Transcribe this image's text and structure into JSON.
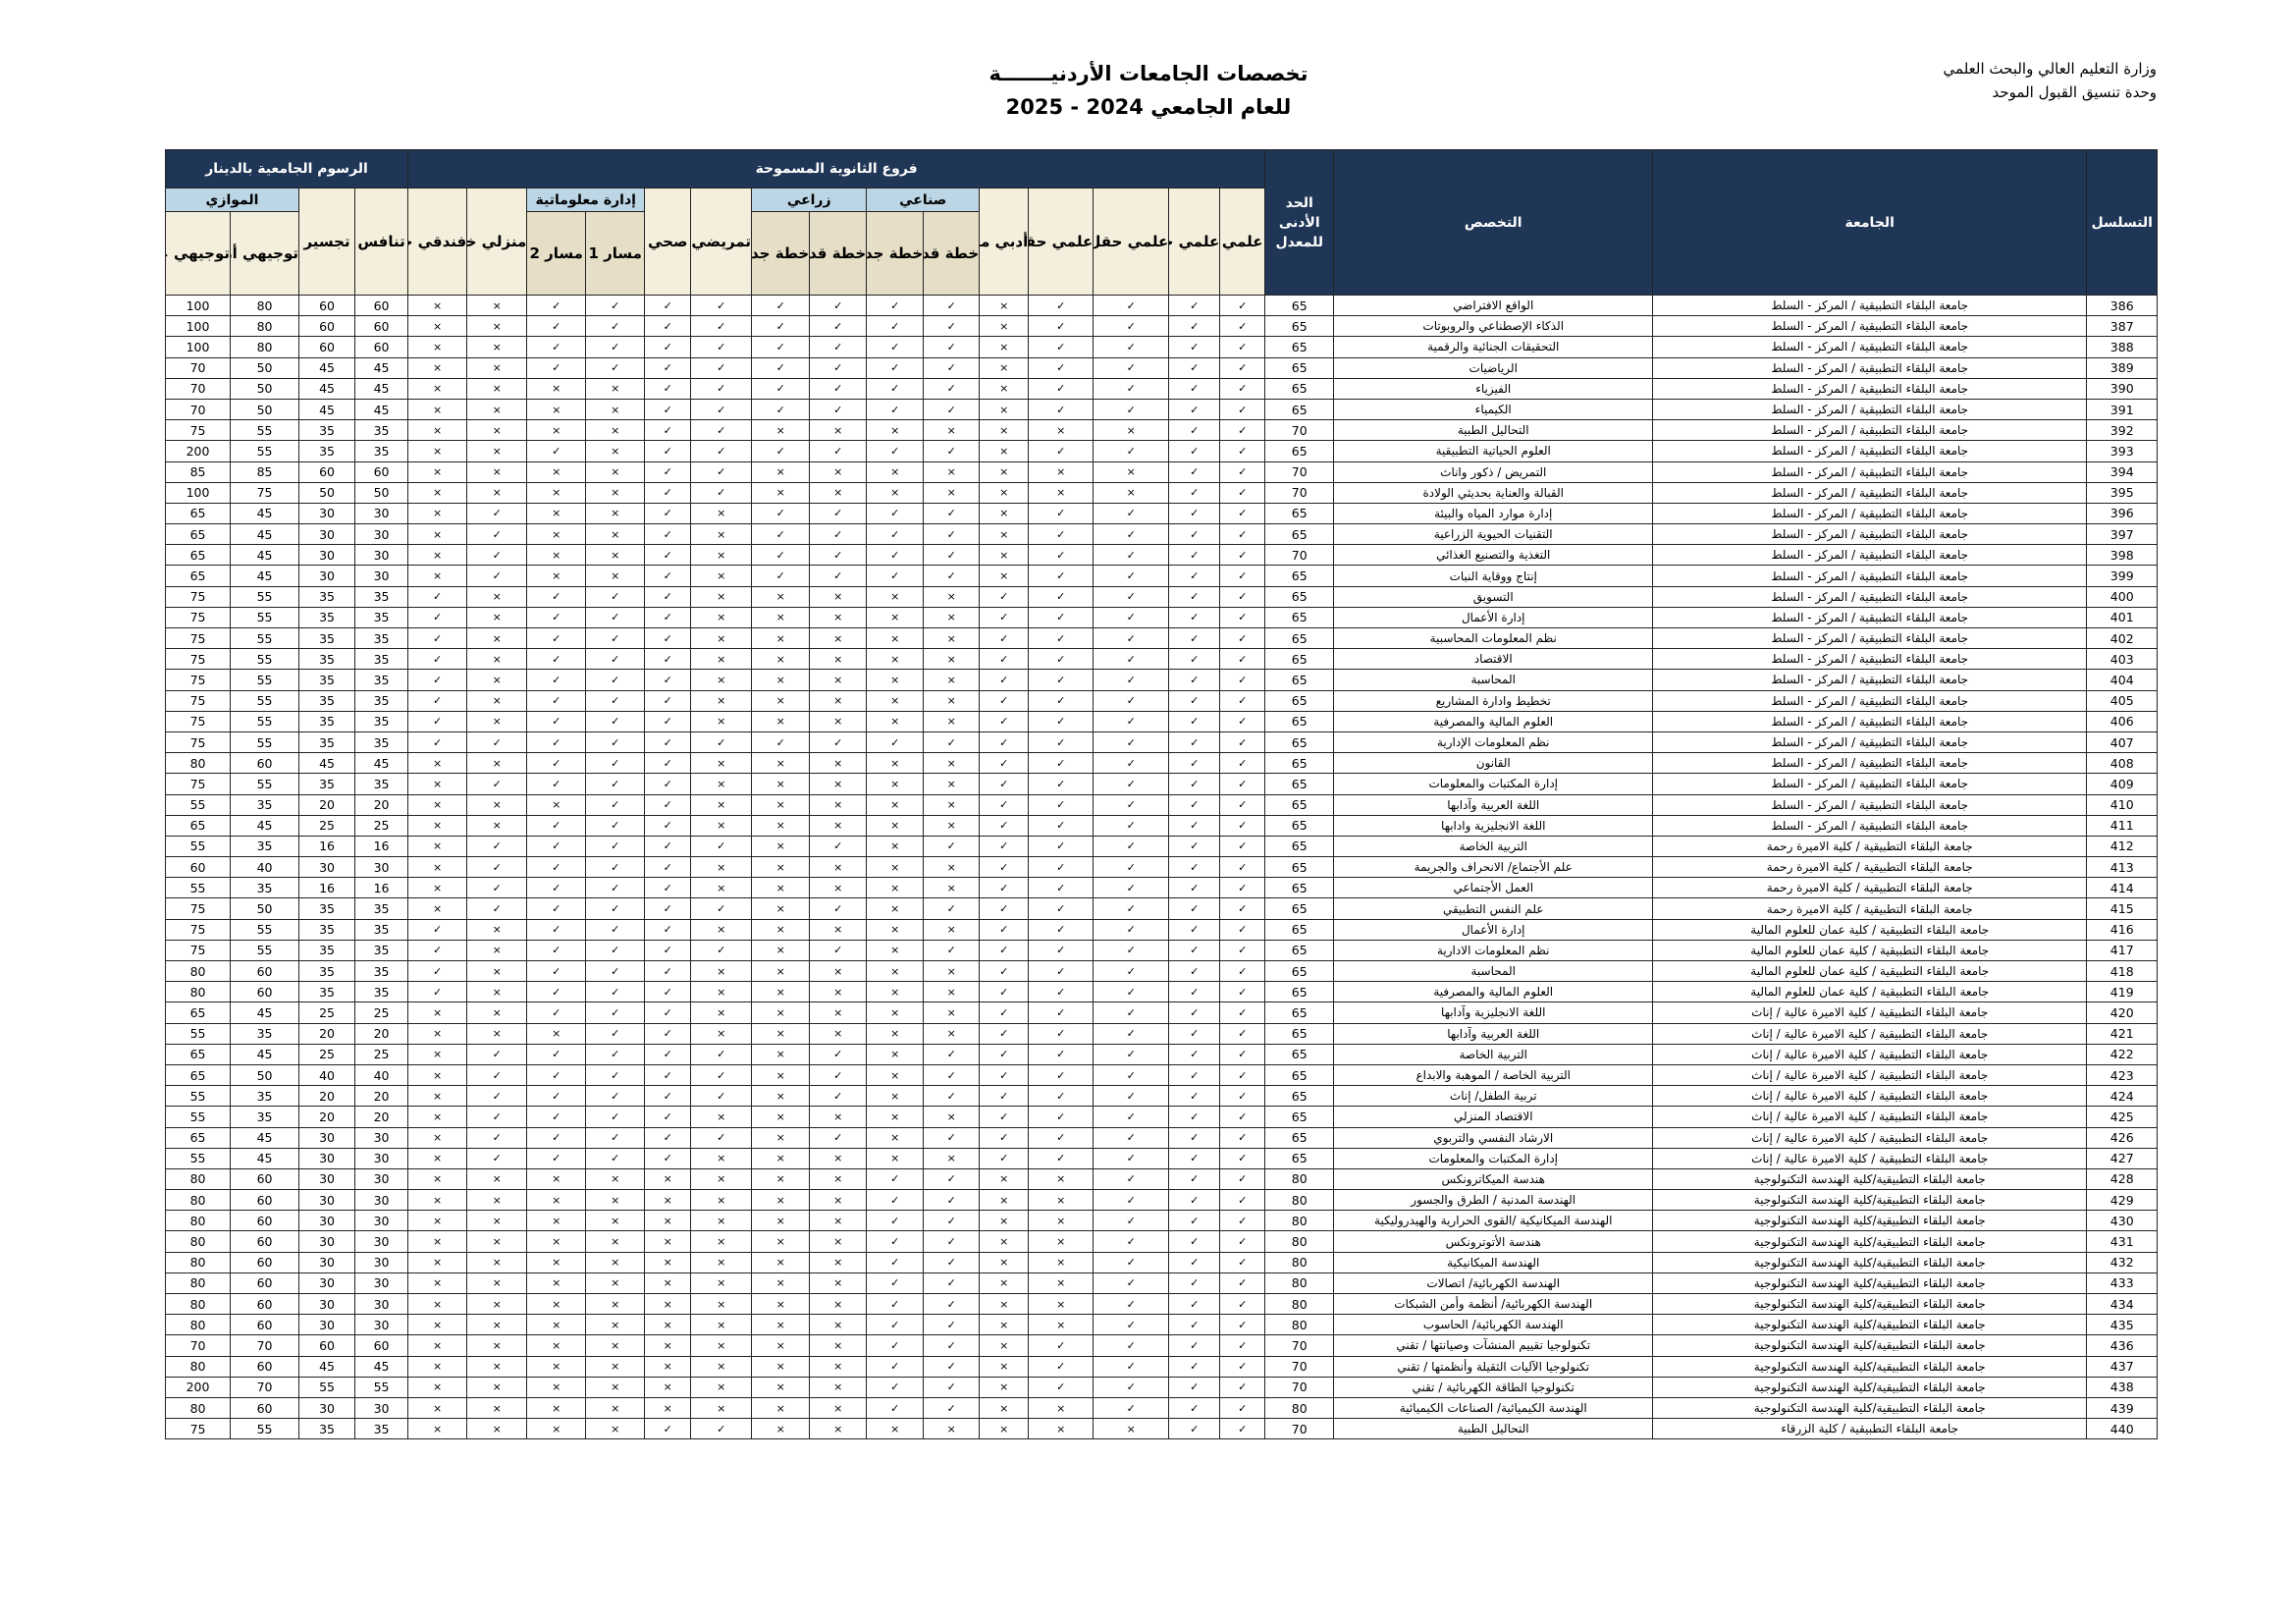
{
  "header": {
    "ministry_line1": "وزارة التعليم العالي والبحث العلمي",
    "ministry_line2": "وحدة تنسيق القبول الموحد",
    "title": "تخصصات الجامعات الأردنيـــــــة",
    "subtitle": "للعام الجامعي  2024 - 2025"
  },
  "columns": {
    "serial": "التسلسل",
    "university": "الجامعة",
    "specialty": "التخصص",
    "min_average": "الحد الأدنى للمعدل",
    "branches_group": "فروع الثانوية المسموحة",
    "fees_group": "الرسوم الجامعية بالدينار",
    "scientific": "علمي",
    "sci_medical": "علمي حقل طبي",
    "sci_engineering": "علمي حقل هندسي",
    "sci_pure": "علمي حقل علوم بحتة",
    "literary_home_old": "أدبي منزلي قديم",
    "industrial": "صناعي",
    "industrial_old": "خطة قديمة",
    "industrial_new": "خطة جديدة",
    "agricultural": "زراعي",
    "agricultural_old": "خطة قديمة",
    "agricultural_new": "خطة جديدة",
    "nursing": "تمريضي",
    "health": "صحي",
    "info_management": "إدارة معلوماتية",
    "track1": "مسار 1",
    "track2": "مسار 2",
    "home_new": "منزلي خطة جديدة",
    "hotel_new": "فندقي خطة جديدة",
    "competitive": "تنافس",
    "bridging": "تجسير",
    "parallel": "الموازي",
    "parallel_jordanian": "توجيهي أردني",
    "parallel_non_jordanian": "توجيهي غير أردني"
  },
  "legend_marks": {
    "allowed": "✓",
    "not_allowed": "×"
  },
  "colors": {
    "header_dark": "#1f3656",
    "group_blue": "#bcd6e6",
    "header_beige": "#f4efdc",
    "sub_beige": "#e6dec6"
  },
  "rows": [
    {
      "no": "386",
      "university": "جامعة البلقاء التطبيقية / المركز - السلط",
      "specialty": "الواقع الافتراضي",
      "min": "65",
      "branches": "✓✓✓✓×✓✓✓✓✓✓✓✓××",
      "fees": [
        "60",
        "60",
        "80",
        "100"
      ]
    },
    {
      "no": "387",
      "university": "جامعة البلقاء التطبيقية / المركز - السلط",
      "specialty": "الذكاء الإصطناعي والروبوتات",
      "min": "65",
      "branches": "✓✓✓✓×✓✓✓✓✓✓✓✓××",
      "fees": [
        "60",
        "60",
        "80",
        "100"
      ]
    },
    {
      "no": "388",
      "university": "جامعة البلقاء التطبيقية / المركز - السلط",
      "specialty": "التحقيقات الجنائية والرقمية",
      "min": "65",
      "branches": "✓✓✓✓×✓✓✓✓✓✓✓✓××",
      "fees": [
        "60",
        "60",
        "80",
        "100"
      ]
    },
    {
      "no": "389",
      "university": "جامعة البلقاء التطبيقية / المركز - السلط",
      "specialty": "الرياضيات",
      "min": "65",
      "branches": "✓✓✓✓×✓✓✓✓✓✓✓✓××",
      "fees": [
        "45",
        "45",
        "50",
        "70"
      ]
    },
    {
      "no": "390",
      "university": "جامعة البلقاء التطبيقية / المركز - السلط",
      "specialty": "الفيزياء",
      "min": "65",
      "branches": "✓✓✓✓×✓✓✓✓✓✓××××",
      "fees": [
        "45",
        "45",
        "50",
        "70"
      ]
    },
    {
      "no": "391",
      "university": "جامعة البلقاء التطبيقية / المركز - السلط",
      "specialty": "الكيمياء",
      "min": "65",
      "branches": "✓✓✓✓×✓✓✓✓✓✓××××",
      "fees": [
        "45",
        "45",
        "50",
        "70"
      ]
    },
    {
      "no": "392",
      "university": "جامعة البلقاء التطبيقية / المركز - السلط",
      "specialty": "التحاليل الطبية",
      "min": "70",
      "branches": "✓✓×××××××✓✓××××",
      "fees": [
        "35",
        "35",
        "55",
        "75"
      ]
    },
    {
      "no": "393",
      "university": "جامعة البلقاء التطبيقية / المركز - السلط",
      "specialty": "العلوم الحياتية التطبيقية",
      "min": "65",
      "branches": "✓✓✓✓×✓✓✓✓✓✓×✓××",
      "fees": [
        "35",
        "35",
        "55",
        "200"
      ]
    },
    {
      "no": "394",
      "university": "جامعة البلقاء التطبيقية / المركز - السلط",
      "specialty": "التمريض / ذكور واناث",
      "min": "70",
      "branches": "✓✓×××××××✓✓××××",
      "fees": [
        "60",
        "60",
        "85",
        "85"
      ]
    },
    {
      "no": "395",
      "university": "جامعة البلقاء التطبيقية / المركز - السلط",
      "specialty": "القبالة والعناية بحديثي الولادة",
      "min": "70",
      "branches": "✓✓×××××××✓✓××××",
      "fees": [
        "50",
        "50",
        "75",
        "100"
      ]
    },
    {
      "no": "396",
      "university": "جامعة البلقاء التطبيقية / المركز - السلط",
      "specialty": "إدارة موارد المياه والبيئة",
      "min": "65",
      "branches": "✓✓✓✓×✓✓✓✓×✓××✓×",
      "fees": [
        "30",
        "30",
        "45",
        "65"
      ]
    },
    {
      "no": "397",
      "university": "جامعة البلقاء التطبيقية / المركز - السلط",
      "specialty": "التقنيات الحيوية الزراعية",
      "min": "65",
      "branches": "✓✓✓✓×✓✓✓✓×✓××✓×",
      "fees": [
        "30",
        "30",
        "45",
        "65"
      ]
    },
    {
      "no": "398",
      "university": "جامعة البلقاء التطبيقية / المركز - السلط",
      "specialty": "التغذية والتصنيع الغذائي",
      "min": "70",
      "branches": "✓✓✓✓×✓✓✓✓×✓××✓×",
      "fees": [
        "30",
        "30",
        "45",
        "65"
      ]
    },
    {
      "no": "399",
      "university": "جامعة البلقاء التطبيقية / المركز - السلط",
      "specialty": "إنتاج ووقاية النبات",
      "min": "65",
      "branches": "✓✓✓✓×✓✓✓✓×✓××✓×",
      "fees": [
        "30",
        "30",
        "45",
        "65"
      ]
    },
    {
      "no": "400",
      "university": "جامعة البلقاء التطبيقية / المركز - السلط",
      "specialty": "التسويق",
      "min": "65",
      "branches": "✓✓✓✓✓×××××✓✓✓×✓",
      "fees": [
        "35",
        "35",
        "55",
        "75"
      ]
    },
    {
      "no": "401",
      "university": "جامعة البلقاء التطبيقية / المركز - السلط",
      "specialty": "إدارة الأعمال",
      "min": "65",
      "branches": "✓✓✓✓✓×××××✓✓✓×✓",
      "fees": [
        "35",
        "35",
        "55",
        "75"
      ]
    },
    {
      "no": "402",
      "university": "جامعة البلقاء التطبيقية / المركز - السلط",
      "specialty": "نظم المعلومات المحاسبية",
      "min": "65",
      "branches": "✓✓✓✓✓×××××✓✓✓×✓",
      "fees": [
        "35",
        "35",
        "55",
        "75"
      ]
    },
    {
      "no": "403",
      "university": "جامعة البلقاء التطبيقية / المركز - السلط",
      "specialty": "الاقتصاد",
      "min": "65",
      "branches": "✓✓✓✓✓×××××✓✓✓×✓",
      "fees": [
        "35",
        "35",
        "55",
        "75"
      ]
    },
    {
      "no": "404",
      "university": "جامعة البلقاء التطبيقية / المركز - السلط",
      "specialty": "المحاسبة",
      "min": "65",
      "branches": "✓✓✓✓✓×××××✓✓✓×✓",
      "fees": [
        "35",
        "35",
        "55",
        "75"
      ]
    },
    {
      "no": "405",
      "university": "جامعة البلقاء التطبيقية / المركز - السلط",
      "specialty": "تخطيط وادارة المشاريع",
      "min": "65",
      "branches": "✓✓✓✓✓×××××✓✓✓×✓",
      "fees": [
        "35",
        "35",
        "55",
        "75"
      ]
    },
    {
      "no": "406",
      "university": "جامعة البلقاء التطبيقية / المركز - السلط",
      "specialty": "العلوم المالية والمصرفية",
      "min": "65",
      "branches": "✓✓✓✓✓×××××✓✓✓×✓",
      "fees": [
        "35",
        "35",
        "55",
        "75"
      ]
    },
    {
      "no": "407",
      "university": "جامعة البلقاء التطبيقية / المركز - السلط",
      "specialty": "نظم المعلومات الإدارية",
      "min": "65",
      "branches": "✓✓✓✓✓✓✓✓✓✓✓✓✓✓✓",
      "fees": [
        "35",
        "35",
        "55",
        "75"
      ]
    },
    {
      "no": "408",
      "university": "جامعة البلقاء التطبيقية / المركز - السلط",
      "specialty": "القانون",
      "min": "65",
      "branches": "✓✓✓✓✓×××××✓✓✓××",
      "fees": [
        "45",
        "45",
        "60",
        "80"
      ]
    },
    {
      "no": "409",
      "university": "جامعة البلقاء التطبيقية / المركز - السلط",
      "specialty": "إدارة المكتبات والمعلومات",
      "min": "65",
      "branches": "✓✓✓✓✓×××××✓✓✓✓×",
      "fees": [
        "35",
        "35",
        "55",
        "75"
      ]
    },
    {
      "no": "410",
      "university": "جامعة البلقاء التطبيقية / المركز - السلط",
      "specialty": "اللغة العربية وآدابها",
      "min": "65",
      "branches": "✓✓✓✓✓×××××✓✓×××",
      "fees": [
        "20",
        "20",
        "35",
        "55"
      ]
    },
    {
      "no": "411",
      "university": "جامعة البلقاء التطبيقية / المركز - السلط",
      "specialty": "اللغة الانجليزية وادابها",
      "min": "65",
      "branches": "✓✓✓✓✓×××××✓✓✓××",
      "fees": [
        "25",
        "25",
        "45",
        "65"
      ]
    },
    {
      "no": "412",
      "university": "جامعة البلقاء التطبيقية / كلية الاميرة رحمة",
      "specialty": "التربية الخاصة",
      "min": "65",
      "branches": "✓✓✓✓✓✓×✓×✓✓✓✓✓×",
      "fees": [
        "16",
        "16",
        "35",
        "55"
      ]
    },
    {
      "no": "413",
      "university": "جامعة البلقاء التطبيقية / كلية الاميرة رحمة",
      "specialty": "علم الأجتماع/ الانحراف والجريمة",
      "min": "65",
      "branches": "✓✓✓✓✓×××××✓✓✓✓×",
      "fees": [
        "30",
        "30",
        "40",
        "60"
      ]
    },
    {
      "no": "414",
      "university": "جامعة البلقاء التطبيقية / كلية الاميرة رحمة",
      "specialty": "العمل الأجتماعي",
      "min": "65",
      "branches": "✓✓✓✓✓×××××✓✓✓✓×",
      "fees": [
        "16",
        "16",
        "35",
        "55"
      ]
    },
    {
      "no": "415",
      "university": "جامعة البلقاء التطبيقية / كلية الاميرة رحمة",
      "specialty": "علم النفس التطبيقي",
      "min": "65",
      "branches": "✓✓✓✓✓✓×✓×✓✓✓✓✓×",
      "fees": [
        "35",
        "35",
        "50",
        "75"
      ]
    },
    {
      "no": "416",
      "university": "جامعة البلقاء التطبيقية / كلية عمان للعلوم المالية",
      "specialty": "إدارة الأعمال",
      "min": "65",
      "branches": "✓✓✓✓✓×××××✓✓✓×✓",
      "fees": [
        "35",
        "35",
        "55",
        "75"
      ]
    },
    {
      "no": "417",
      "university": "جامعة البلقاء التطبيقية / كلية عمان للعلوم المالية",
      "specialty": "نظم المعلومات الادارية",
      "min": "65",
      "branches": "✓✓✓✓✓✓×✓×✓✓✓✓×✓",
      "fees": [
        "35",
        "35",
        "55",
        "75"
      ]
    },
    {
      "no": "418",
      "university": "جامعة البلقاء التطبيقية / كلية عمان للعلوم المالية",
      "specialty": "المحاسبة",
      "min": "65",
      "branches": "✓✓✓✓✓×××××✓✓✓×✓",
      "fees": [
        "35",
        "35",
        "60",
        "80"
      ]
    },
    {
      "no": "419",
      "university": "جامعة البلقاء التطبيقية / كلية عمان للعلوم المالية",
      "specialty": "العلوم المالية والمصرفية",
      "min": "65",
      "branches": "✓✓✓✓✓×××××✓✓✓×✓",
      "fees": [
        "35",
        "35",
        "60",
        "80"
      ]
    },
    {
      "no": "420",
      "university": "جامعة البلقاء التطبيقية / كلية الاميرة عالية / إناث",
      "specialty": "اللغة الانجليزية وآدابها",
      "min": "65",
      "branches": "✓✓✓✓✓×××××✓✓✓××",
      "fees": [
        "25",
        "25",
        "45",
        "65"
      ]
    },
    {
      "no": "421",
      "university": "جامعة البلقاء التطبيقية / كلية الاميرة عالية / إناث",
      "specialty": "اللغة العربية وآدابها",
      "min": "65",
      "branches": "✓✓✓✓✓×××××✓✓×××",
      "fees": [
        "20",
        "20",
        "35",
        "55"
      ]
    },
    {
      "no": "422",
      "university": "جامعة البلقاء التطبيقية / كلية الاميرة عالية / إناث",
      "specialty": "التربية الخاصة",
      "min": "65",
      "branches": "✓✓✓✓✓✓×✓×✓✓✓✓✓×",
      "fees": [
        "25",
        "25",
        "45",
        "65"
      ]
    },
    {
      "no": "423",
      "university": "جامعة البلقاء التطبيقية / كلية الاميرة عالية / إناث",
      "specialty": "التربية الخاصة / الموهبة والابداع",
      "min": "65",
      "branches": "✓✓✓✓✓✓×✓×✓✓✓✓✓×",
      "fees": [
        "40",
        "40",
        "50",
        "65"
      ]
    },
    {
      "no": "424",
      "university": "جامعة البلقاء التطبيقية / كلية الاميرة عالية / إناث",
      "specialty": "تربية الطفل/ إناث",
      "min": "65",
      "branches": "✓✓✓✓✓✓×✓×✓✓✓✓✓×",
      "fees": [
        "20",
        "20",
        "35",
        "55"
      ]
    },
    {
      "no": "425",
      "university": "جامعة البلقاء التطبيقية / كلية الاميرة عالية / إناث",
      "specialty": "الاقتصاد المنزلي",
      "min": "65",
      "branches": "✓✓✓✓✓×××××✓✓✓✓×",
      "fees": [
        "20",
        "20",
        "35",
        "55"
      ]
    },
    {
      "no": "426",
      "university": "جامعة البلقاء التطبيقية / كلية الاميرة عالية / إناث",
      "specialty": "الارشاد النفسي والتربوي",
      "min": "65",
      "branches": "✓✓✓✓✓✓×✓×✓✓✓✓✓×",
      "fees": [
        "30",
        "30",
        "45",
        "65"
      ]
    },
    {
      "no": "427",
      "university": "جامعة البلقاء التطبيقية / كلية الاميرة عالية / إناث",
      "specialty": "إدارة المكتبات والمعلومات",
      "min": "65",
      "branches": "✓✓✓✓✓×××××✓✓✓✓×",
      "fees": [
        "30",
        "30",
        "45",
        "55"
      ]
    },
    {
      "no": "428",
      "university": "جامعة البلقاء التطبيقية/كلية الهندسة التكنولوجية",
      "specialty": "هندسة الميكاترونكس",
      "min": "80",
      "branches": "✓✓✓××✓✓××××××××",
      "fees": [
        "30",
        "30",
        "60",
        "80"
      ]
    },
    {
      "no": "429",
      "university": "جامعة البلقاء التطبيقية/كلية الهندسة التكنولوجية",
      "specialty": "الهندسة المدنية / الطرق والجسور",
      "min": "80",
      "branches": "✓✓✓××✓✓××××××××",
      "fees": [
        "30",
        "30",
        "60",
        "80"
      ]
    },
    {
      "no": "430",
      "university": "جامعة البلقاء التطبيقية/كلية الهندسة التكنولوجية",
      "specialty": "الهندسة الميكانيكية /القوى الحرارية والهيدروليكية",
      "min": "80",
      "branches": "✓✓✓××✓✓××××××××",
      "fees": [
        "30",
        "30",
        "60",
        "80"
      ]
    },
    {
      "no": "431",
      "university": "جامعة البلقاء التطبيقية/كلية الهندسة التكنولوجية",
      "specialty": "هندسة الأتوترونكس",
      "min": "80",
      "branches": "✓✓✓××✓✓××××××××",
      "fees": [
        "30",
        "30",
        "60",
        "80"
      ]
    },
    {
      "no": "432",
      "university": "جامعة البلقاء التطبيقية/كلية الهندسة التكنولوجية",
      "specialty": "الهندسة الميكانيكية",
      "min": "80",
      "branches": "✓✓✓××✓✓××××××××",
      "fees": [
        "30",
        "30",
        "60",
        "80"
      ]
    },
    {
      "no": "433",
      "university": "جامعة البلقاء التطبيقية/كلية الهندسة التكنولوجية",
      "specialty": "الهندسة الكهربائية/ اتصالات",
      "min": "80",
      "branches": "✓✓✓××✓✓××××××××",
      "fees": [
        "30",
        "30",
        "60",
        "80"
      ]
    },
    {
      "no": "434",
      "university": "جامعة البلقاء التطبيقية/كلية الهندسة التكنولوجية",
      "specialty": "الهندسة الكهربائية/ أنظمة وأمن الشبكات",
      "min": "80",
      "branches": "✓✓✓××✓✓××××××××",
      "fees": [
        "30",
        "30",
        "60",
        "80"
      ]
    },
    {
      "no": "435",
      "university": "جامعة البلقاء التطبيقية/كلية الهندسة التكنولوجية",
      "specialty": "الهندسة الكهربائية/ الحاسوب",
      "min": "80",
      "branches": "✓✓✓××✓✓××××××××",
      "fees": [
        "30",
        "30",
        "60",
        "80"
      ]
    },
    {
      "no": "436",
      "university": "جامعة البلقاء التطبيقية/كلية الهندسة التكنولوجية",
      "specialty": "تكنولوجيا تقييم المنشآت وصيانتها / تقني",
      "min": "70",
      "branches": "✓✓✓✓×✓✓××××××××",
      "fees": [
        "60",
        "60",
        "70",
        "70"
      ]
    },
    {
      "no": "437",
      "university": "جامعة البلقاء التطبيقية/كلية الهندسة التكنولوجية",
      "specialty": "تكنولوجيا الآليات الثقيلة وأنظمتها / تقني",
      "min": "70",
      "branches": "✓✓✓✓×✓✓××××××××",
      "fees": [
        "45",
        "45",
        "60",
        "80"
      ]
    },
    {
      "no": "438",
      "university": "جامعة البلقاء التطبيقية/كلية الهندسة التكنولوجية",
      "specialty": "تكنولوجيا الطاقة الكهربائية / تقني",
      "min": "70",
      "branches": "✓✓✓✓×✓✓××××××××",
      "fees": [
        "55",
        "55",
        "70",
        "200"
      ]
    },
    {
      "no": "439",
      "university": "جامعة البلقاء التطبيقية/كلية الهندسة التكنولوجية",
      "specialty": "الهندسة الكيميائية/ الصناعات الكيميائية",
      "min": "80",
      "branches": "✓✓✓××✓✓××××××××",
      "fees": [
        "30",
        "30",
        "60",
        "80"
      ]
    },
    {
      "no": "440",
      "university": "جامعة البلقاء التطبيقية / كلية الزرقاء",
      "specialty": "التحاليل الطبية",
      "min": "70",
      "branches": "✓✓×××××××✓✓××××",
      "fees": [
        "35",
        "35",
        "55",
        "75"
      ]
    }
  ]
}
